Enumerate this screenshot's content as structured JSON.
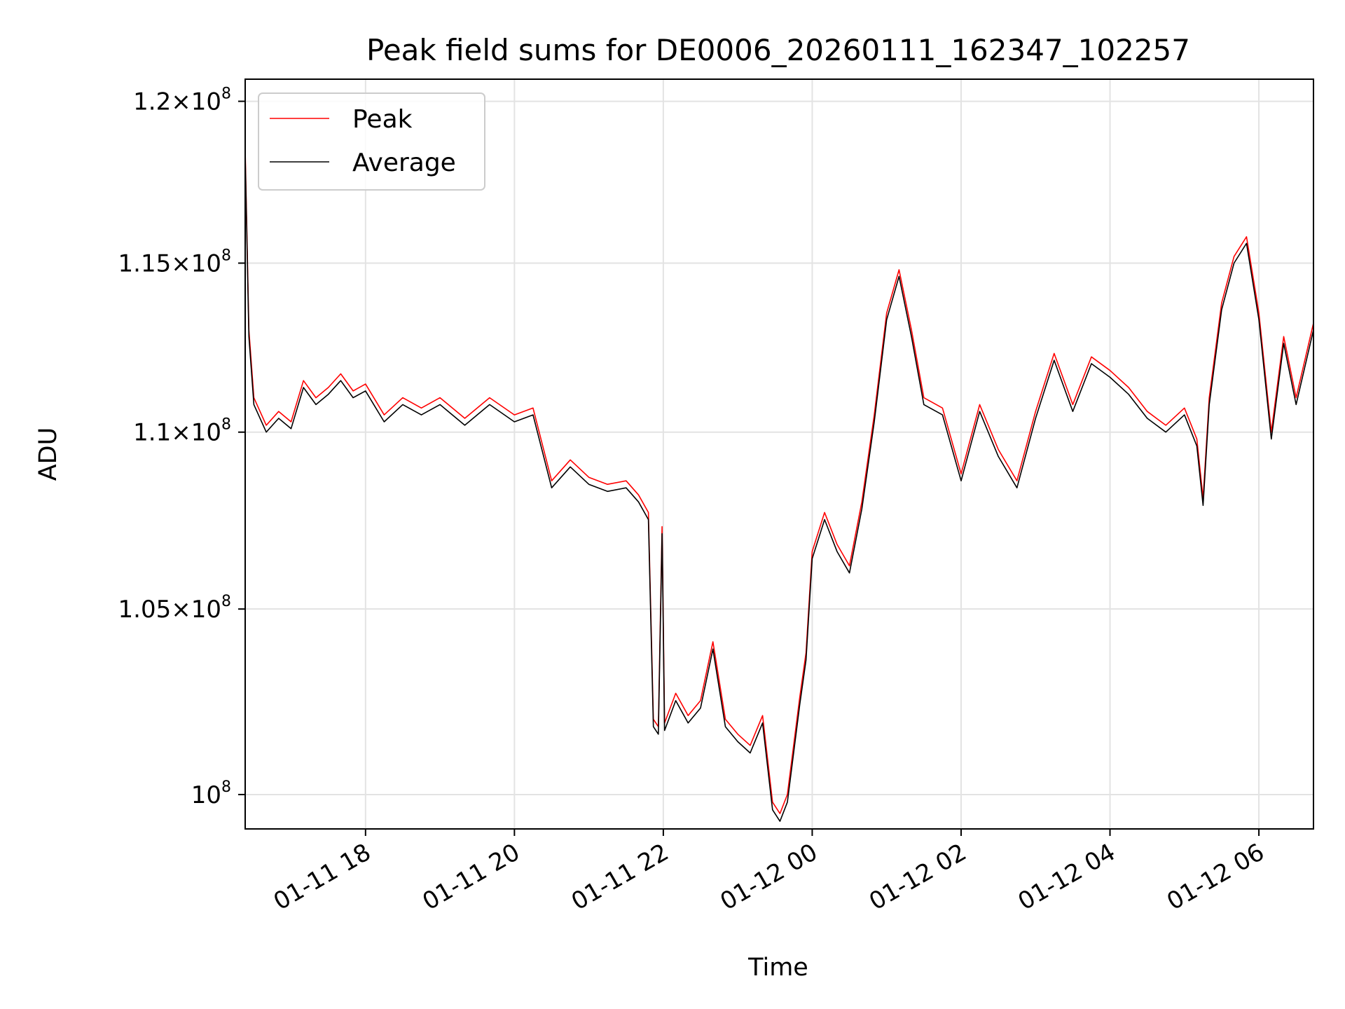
{
  "chart_data": {
    "type": "line",
    "title": "Peak field sums for DE0006_20260111_162347_102257",
    "xlabel": "Time",
    "ylabel": "ADU",
    "yscale": "log",
    "grid": true,
    "legend_position": "top-left",
    "xlim": [
      "2026-01-11 16:23",
      "2026-01-12 06:44"
    ],
    "ylim": [
      99100000,
      120700000
    ],
    "x_ticks": [
      {
        "value": "2026-01-11 18:00",
        "label": "01-11 18"
      },
      {
        "value": "2026-01-11 20:00",
        "label": "01-11 20"
      },
      {
        "value": "2026-01-11 22:00",
        "label": "01-11 22"
      },
      {
        "value": "2026-01-12 00:00",
        "label": "01-12 00"
      },
      {
        "value": "2026-01-12 02:00",
        "label": "01-12 02"
      },
      {
        "value": "2026-01-12 04:00",
        "label": "01-12 04"
      },
      {
        "value": "2026-01-12 06:00",
        "label": "01-12 06"
      }
    ],
    "y_ticks": [
      {
        "value": 100000000,
        "mantissa": "",
        "exponent": "8"
      },
      {
        "value": 105000000,
        "mantissa": "1.05",
        "exponent": "8"
      },
      {
        "value": 110000000,
        "mantissa": "1.1",
        "exponent": "8"
      },
      {
        "value": 115000000,
        "mantissa": "1.15",
        "exponent": "8"
      },
      {
        "value": 120000000,
        "mantissa": "1.2",
        "exponent": "8"
      }
    ],
    "series": [
      {
        "name": "Peak",
        "color": "#ff0000",
        "points": [
          [
            "2026-01-11 16:23",
            118500000
          ],
          [
            "2026-01-11 16:26",
            113000000
          ],
          [
            "2026-01-11 16:30",
            111000000
          ],
          [
            "2026-01-11 16:40",
            110200000
          ],
          [
            "2026-01-11 16:50",
            110600000
          ],
          [
            "2026-01-11 17:00",
            110300000
          ],
          [
            "2026-01-11 17:10",
            111500000
          ],
          [
            "2026-01-11 17:20",
            111000000
          ],
          [
            "2026-01-11 17:30",
            111300000
          ],
          [
            "2026-01-11 17:40",
            111700000
          ],
          [
            "2026-01-11 17:50",
            111200000
          ],
          [
            "2026-01-11 18:00",
            111400000
          ],
          [
            "2026-01-11 18:15",
            110500000
          ],
          [
            "2026-01-11 18:30",
            111000000
          ],
          [
            "2026-01-11 18:45",
            110700000
          ],
          [
            "2026-01-11 19:00",
            111000000
          ],
          [
            "2026-01-11 19:20",
            110400000
          ],
          [
            "2026-01-11 19:40",
            111000000
          ],
          [
            "2026-01-11 20:00",
            110500000
          ],
          [
            "2026-01-11 20:15",
            110700000
          ],
          [
            "2026-01-11 20:30",
            108600000
          ],
          [
            "2026-01-11 20:45",
            109200000
          ],
          [
            "2026-01-11 21:00",
            108700000
          ],
          [
            "2026-01-11 21:15",
            108500000
          ],
          [
            "2026-01-11 21:30",
            108600000
          ],
          [
            "2026-01-11 21:40",
            108200000
          ],
          [
            "2026-01-11 21:48",
            107700000
          ],
          [
            "2026-01-11 21:52",
            102000000
          ],
          [
            "2026-01-11 21:56",
            101800000
          ],
          [
            "2026-01-11 21:59",
            107300000
          ],
          [
            "2026-01-11 22:01",
            101900000
          ],
          [
            "2026-01-11 22:10",
            102700000
          ],
          [
            "2026-01-11 22:20",
            102100000
          ],
          [
            "2026-01-11 22:30",
            102500000
          ],
          [
            "2026-01-11 22:40",
            104100000
          ],
          [
            "2026-01-11 22:50",
            102000000
          ],
          [
            "2026-01-11 23:00",
            101600000
          ],
          [
            "2026-01-11 23:10",
            101300000
          ],
          [
            "2026-01-11 23:20",
            102100000
          ],
          [
            "2026-01-11 23:28",
            99800000
          ],
          [
            "2026-01-11 23:34",
            99500000
          ],
          [
            "2026-01-11 23:40",
            100000000
          ],
          [
            "2026-01-11 23:50",
            102600000
          ],
          [
            "2026-01-11 23:55",
            103800000
          ],
          [
            "2026-01-12 00:00",
            106600000
          ],
          [
            "2026-01-12 00:10",
            107700000
          ],
          [
            "2026-01-12 00:20",
            106800000
          ],
          [
            "2026-01-12 00:30",
            106200000
          ],
          [
            "2026-01-12 00:40",
            108000000
          ],
          [
            "2026-01-12 00:50",
            110500000
          ],
          [
            "2026-01-12 01:00",
            113500000
          ],
          [
            "2026-01-12 01:10",
            114800000
          ],
          [
            "2026-01-12 01:20",
            113000000
          ],
          [
            "2026-01-12 01:30",
            111000000
          ],
          [
            "2026-01-12 01:45",
            110700000
          ],
          [
            "2026-01-12 02:00",
            108800000
          ],
          [
            "2026-01-12 02:15",
            110800000
          ],
          [
            "2026-01-12 02:30",
            109500000
          ],
          [
            "2026-01-12 02:45",
            108600000
          ],
          [
            "2026-01-12 03:00",
            110600000
          ],
          [
            "2026-01-12 03:15",
            112300000
          ],
          [
            "2026-01-12 03:30",
            110800000
          ],
          [
            "2026-01-12 03:45",
            112200000
          ],
          [
            "2026-01-12 04:00",
            111800000
          ],
          [
            "2026-01-12 04:15",
            111300000
          ],
          [
            "2026-01-12 04:30",
            110600000
          ],
          [
            "2026-01-12 04:45",
            110200000
          ],
          [
            "2026-01-12 05:00",
            110700000
          ],
          [
            "2026-01-12 05:10",
            109800000
          ],
          [
            "2026-01-12 05:15",
            108100000
          ],
          [
            "2026-01-12 05:20",
            111000000
          ],
          [
            "2026-01-12 05:30",
            113800000
          ],
          [
            "2026-01-12 05:40",
            115200000
          ],
          [
            "2026-01-12 05:50",
            115800000
          ],
          [
            "2026-01-12 06:00",
            113500000
          ],
          [
            "2026-01-12 06:10",
            110000000
          ],
          [
            "2026-01-12 06:20",
            112800000
          ],
          [
            "2026-01-12 06:30",
            111000000
          ],
          [
            "2026-01-12 06:44",
            113200000
          ]
        ]
      },
      {
        "name": "Average",
        "color": "#000000",
        "points": [
          [
            "2026-01-11 16:23",
            118300000
          ],
          [
            "2026-01-11 16:26",
            112800000
          ],
          [
            "2026-01-11 16:30",
            110800000
          ],
          [
            "2026-01-11 16:40",
            110000000
          ],
          [
            "2026-01-11 16:50",
            110400000
          ],
          [
            "2026-01-11 17:00",
            110100000
          ],
          [
            "2026-01-11 17:10",
            111300000
          ],
          [
            "2026-01-11 17:20",
            110800000
          ],
          [
            "2026-01-11 17:30",
            111100000
          ],
          [
            "2026-01-11 17:40",
            111500000
          ],
          [
            "2026-01-11 17:50",
            111000000
          ],
          [
            "2026-01-11 18:00",
            111200000
          ],
          [
            "2026-01-11 18:15",
            110300000
          ],
          [
            "2026-01-11 18:30",
            110800000
          ],
          [
            "2026-01-11 18:45",
            110500000
          ],
          [
            "2026-01-11 19:00",
            110800000
          ],
          [
            "2026-01-11 19:20",
            110200000
          ],
          [
            "2026-01-11 19:40",
            110800000
          ],
          [
            "2026-01-11 20:00",
            110300000
          ],
          [
            "2026-01-11 20:15",
            110500000
          ],
          [
            "2026-01-11 20:30",
            108400000
          ],
          [
            "2026-01-11 20:45",
            109000000
          ],
          [
            "2026-01-11 21:00",
            108500000
          ],
          [
            "2026-01-11 21:15",
            108300000
          ],
          [
            "2026-01-11 21:30",
            108400000
          ],
          [
            "2026-01-11 21:40",
            108000000
          ],
          [
            "2026-01-11 21:48",
            107500000
          ],
          [
            "2026-01-11 21:52",
            101800000
          ],
          [
            "2026-01-11 21:56",
            101600000
          ],
          [
            "2026-01-11 21:59",
            107100000
          ],
          [
            "2026-01-11 22:01",
            101700000
          ],
          [
            "2026-01-11 22:10",
            102500000
          ],
          [
            "2026-01-11 22:20",
            101900000
          ],
          [
            "2026-01-11 22:30",
            102300000
          ],
          [
            "2026-01-11 22:40",
            103900000
          ],
          [
            "2026-01-11 22:50",
            101800000
          ],
          [
            "2026-01-11 23:00",
            101400000
          ],
          [
            "2026-01-11 23:10",
            101100000
          ],
          [
            "2026-01-11 23:20",
            101900000
          ],
          [
            "2026-01-11 23:28",
            99600000
          ],
          [
            "2026-01-11 23:34",
            99300000
          ],
          [
            "2026-01-11 23:40",
            99800000
          ],
          [
            "2026-01-11 23:50",
            102400000
          ],
          [
            "2026-01-11 23:55",
            103600000
          ],
          [
            "2026-01-12 00:00",
            106400000
          ],
          [
            "2026-01-12 00:10",
            107500000
          ],
          [
            "2026-01-12 00:20",
            106600000
          ],
          [
            "2026-01-12 00:30",
            106000000
          ],
          [
            "2026-01-12 00:40",
            107800000
          ],
          [
            "2026-01-12 00:50",
            110300000
          ],
          [
            "2026-01-12 01:00",
            113300000
          ],
          [
            "2026-01-12 01:10",
            114600000
          ],
          [
            "2026-01-12 01:20",
            112800000
          ],
          [
            "2026-01-12 01:30",
            110800000
          ],
          [
            "2026-01-12 01:45",
            110500000
          ],
          [
            "2026-01-12 02:00",
            108600000
          ],
          [
            "2026-01-12 02:15",
            110600000
          ],
          [
            "2026-01-12 02:30",
            109300000
          ],
          [
            "2026-01-12 02:45",
            108400000
          ],
          [
            "2026-01-12 03:00",
            110400000
          ],
          [
            "2026-01-12 03:15",
            112100000
          ],
          [
            "2026-01-12 03:30",
            110600000
          ],
          [
            "2026-01-12 03:45",
            112000000
          ],
          [
            "2026-01-12 04:00",
            111600000
          ],
          [
            "2026-01-12 04:15",
            111100000
          ],
          [
            "2026-01-12 04:30",
            110400000
          ],
          [
            "2026-01-12 04:45",
            110000000
          ],
          [
            "2026-01-12 05:00",
            110500000
          ],
          [
            "2026-01-12 05:10",
            109600000
          ],
          [
            "2026-01-12 05:15",
            107900000
          ],
          [
            "2026-01-12 05:20",
            110800000
          ],
          [
            "2026-01-12 05:30",
            113600000
          ],
          [
            "2026-01-12 05:40",
            115000000
          ],
          [
            "2026-01-12 05:50",
            115600000
          ],
          [
            "2026-01-12 06:00",
            113300000
          ],
          [
            "2026-01-12 06:10",
            109800000
          ],
          [
            "2026-01-12 06:20",
            112600000
          ],
          [
            "2026-01-12 06:30",
            110800000
          ],
          [
            "2026-01-12 06:44",
            113000000
          ]
        ]
      }
    ]
  }
}
